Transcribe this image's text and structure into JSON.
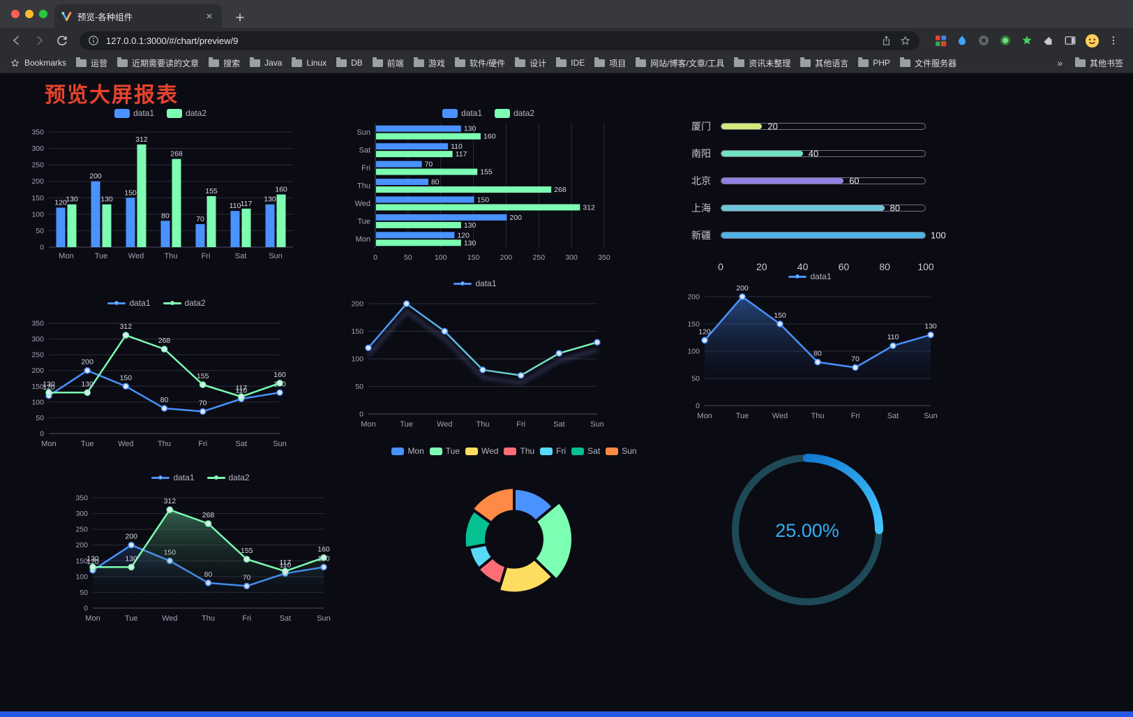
{
  "browser": {
    "tab": {
      "title": "预览-各种组件"
    },
    "address": {
      "url": "127.0.0.1:3000/#/chart/preview/9"
    },
    "bookmarks_bar": {
      "label": "Bookmarks",
      "folders": [
        "运营",
        "近期需要读的文章",
        "搜索",
        "Java",
        "Linux",
        "DB",
        "前端",
        "游戏",
        "软件/硬件",
        "设计",
        "IDE",
        "项目",
        "网站/博客/文章/工具",
        "资讯未整理",
        "其他语言",
        "PHP",
        "文件服务器"
      ],
      "overflow": "»",
      "other": "其他书签"
    }
  },
  "page": {
    "title": "预览大屏报表"
  },
  "chart_data": [
    {
      "id": "c1",
      "type": "bar",
      "categories": [
        "Mon",
        "Tue",
        "Wed",
        "Thu",
        "Fri",
        "Sat",
        "Sun"
      ],
      "series": [
        {
          "name": "data1",
          "color": "#4992ff",
          "values": [
            120,
            200,
            150,
            80,
            70,
            110,
            130
          ]
        },
        {
          "name": "data2",
          "color": "#7cffb2",
          "values": [
            130,
            130,
            312,
            268,
            155,
            117,
            160
          ]
        }
      ],
      "ylim": [
        0,
        350
      ],
      "yticks": [
        0,
        50,
        100,
        150,
        200,
        250,
        300,
        350
      ],
      "legend_position": "top"
    },
    {
      "id": "c2",
      "type": "bar-horizontal",
      "categories": [
        "Mon",
        "Tue",
        "Wed",
        "Thu",
        "Fri",
        "Sat",
        "Sun"
      ],
      "row_order": [
        "Sun",
        "Sat",
        "Fri",
        "Thu",
        "Wed",
        "Tue",
        "Mon"
      ],
      "series": [
        {
          "name": "data1",
          "color": "#4992ff",
          "values": [
            120,
            200,
            150,
            80,
            70,
            110,
            130
          ]
        },
        {
          "name": "data2",
          "color": "#7cffb2",
          "values": [
            130,
            130,
            312,
            268,
            155,
            117,
            160
          ]
        }
      ],
      "xlim": [
        0,
        350
      ],
      "xticks": [
        0,
        50,
        100,
        150,
        200,
        250,
        300,
        350
      ],
      "legend_position": "top"
    },
    {
      "id": "c3",
      "type": "progress",
      "max": 100,
      "xticks": [
        0,
        20,
        40,
        60,
        80,
        100
      ],
      "items": [
        {
          "label": "厦门",
          "value": 20,
          "color": "#d2e97d"
        },
        {
          "label": "南阳",
          "value": 40,
          "color": "#70e3c0"
        },
        {
          "label": "北京",
          "value": 60,
          "color": "#8f82e0"
        },
        {
          "label": "上海",
          "value": 80,
          "color": "#6fc5d8"
        },
        {
          "label": "新疆",
          "value": 100,
          "color": "#4eb3e4"
        }
      ]
    },
    {
      "id": "c4",
      "type": "line",
      "show_labels": true,
      "categories": [
        "Mon",
        "Tue",
        "Wed",
        "Thu",
        "Fri",
        "Sat",
        "Sun"
      ],
      "series": [
        {
          "name": "data1",
          "color": "#4992ff",
          "values": [
            120,
            200,
            150,
            80,
            70,
            110,
            130
          ]
        },
        {
          "name": "data2",
          "color": "#7cffb2",
          "values": [
            130,
            130,
            312,
            268,
            155,
            117,
            160
          ]
        }
      ],
      "ylim": [
        0,
        350
      ],
      "yticks": [
        0,
        50,
        100,
        150,
        200,
        250,
        300,
        350
      ]
    },
    {
      "id": "c5",
      "type": "line",
      "show_labels": false,
      "shadow": true,
      "categories": [
        "Mon",
        "Tue",
        "Wed",
        "Thu",
        "Fri",
        "Sat",
        "Sun"
      ],
      "series": [
        {
          "name": "data1",
          "color": "#4992ff",
          "gradient": [
            "#4992ff",
            "#7cffb2"
          ],
          "values": [
            120,
            200,
            150,
            80,
            70,
            110,
            130
          ]
        }
      ],
      "ylim": [
        0,
        200
      ],
      "yticks": [
        0,
        50,
        100,
        150,
        200
      ]
    },
    {
      "id": "c6",
      "type": "line",
      "show_labels": true,
      "categories": [
        "Mon",
        "Tue",
        "Wed",
        "Thu",
        "Fri",
        "Sat",
        "Sun"
      ],
      "series": [
        {
          "name": "data1",
          "color": "#4992ff",
          "area": "rgba(73,146,255,0.45)",
          "values": [
            120,
            200,
            150,
            80,
            70,
            110,
            130
          ]
        }
      ],
      "ylim": [
        0,
        200
      ],
      "yticks": [
        0,
        50,
        100,
        150,
        200
      ]
    },
    {
      "id": "c7",
      "type": "line",
      "show_labels": true,
      "categories": [
        "Mon",
        "Tue",
        "Wed",
        "Thu",
        "Fri",
        "Sat",
        "Sun"
      ],
      "series": [
        {
          "name": "data1",
          "color": "#4992ff",
          "area": "rgba(73,146,255,0.20)",
          "values": [
            120,
            200,
            150,
            80,
            70,
            110,
            130
          ]
        },
        {
          "name": "data2",
          "color": "#7cffb2",
          "area": "rgba(124,255,178,0.35)",
          "values": [
            130,
            130,
            312,
            268,
            155,
            117,
            160
          ]
        }
      ],
      "ylim": [
        0,
        350
      ],
      "yticks": [
        0,
        50,
        100,
        150,
        200,
        250,
        300,
        350
      ]
    },
    {
      "id": "c8",
      "type": "pie",
      "items": [
        {
          "name": "Mon",
          "value": 120,
          "color": "#4992ff"
        },
        {
          "name": "Tue",
          "value": 200,
          "color": "#7cffb2"
        },
        {
          "name": "Wed",
          "value": 150,
          "color": "#fddd60"
        },
        {
          "name": "Thu",
          "value": 80,
          "color": "#ff6e76"
        },
        {
          "name": "Fri",
          "value": 70,
          "color": "#58d9f9"
        },
        {
          "name": "Sat",
          "value": 110,
          "color": "#05c091"
        },
        {
          "name": "Sun",
          "value": 130,
          "color": "#ff8a45"
        }
      ]
    },
    {
      "id": "c9",
      "type": "ring",
      "value": 25,
      "label": "25.00%",
      "color": "#31aff2",
      "track_color": "#1d4a56"
    }
  ]
}
